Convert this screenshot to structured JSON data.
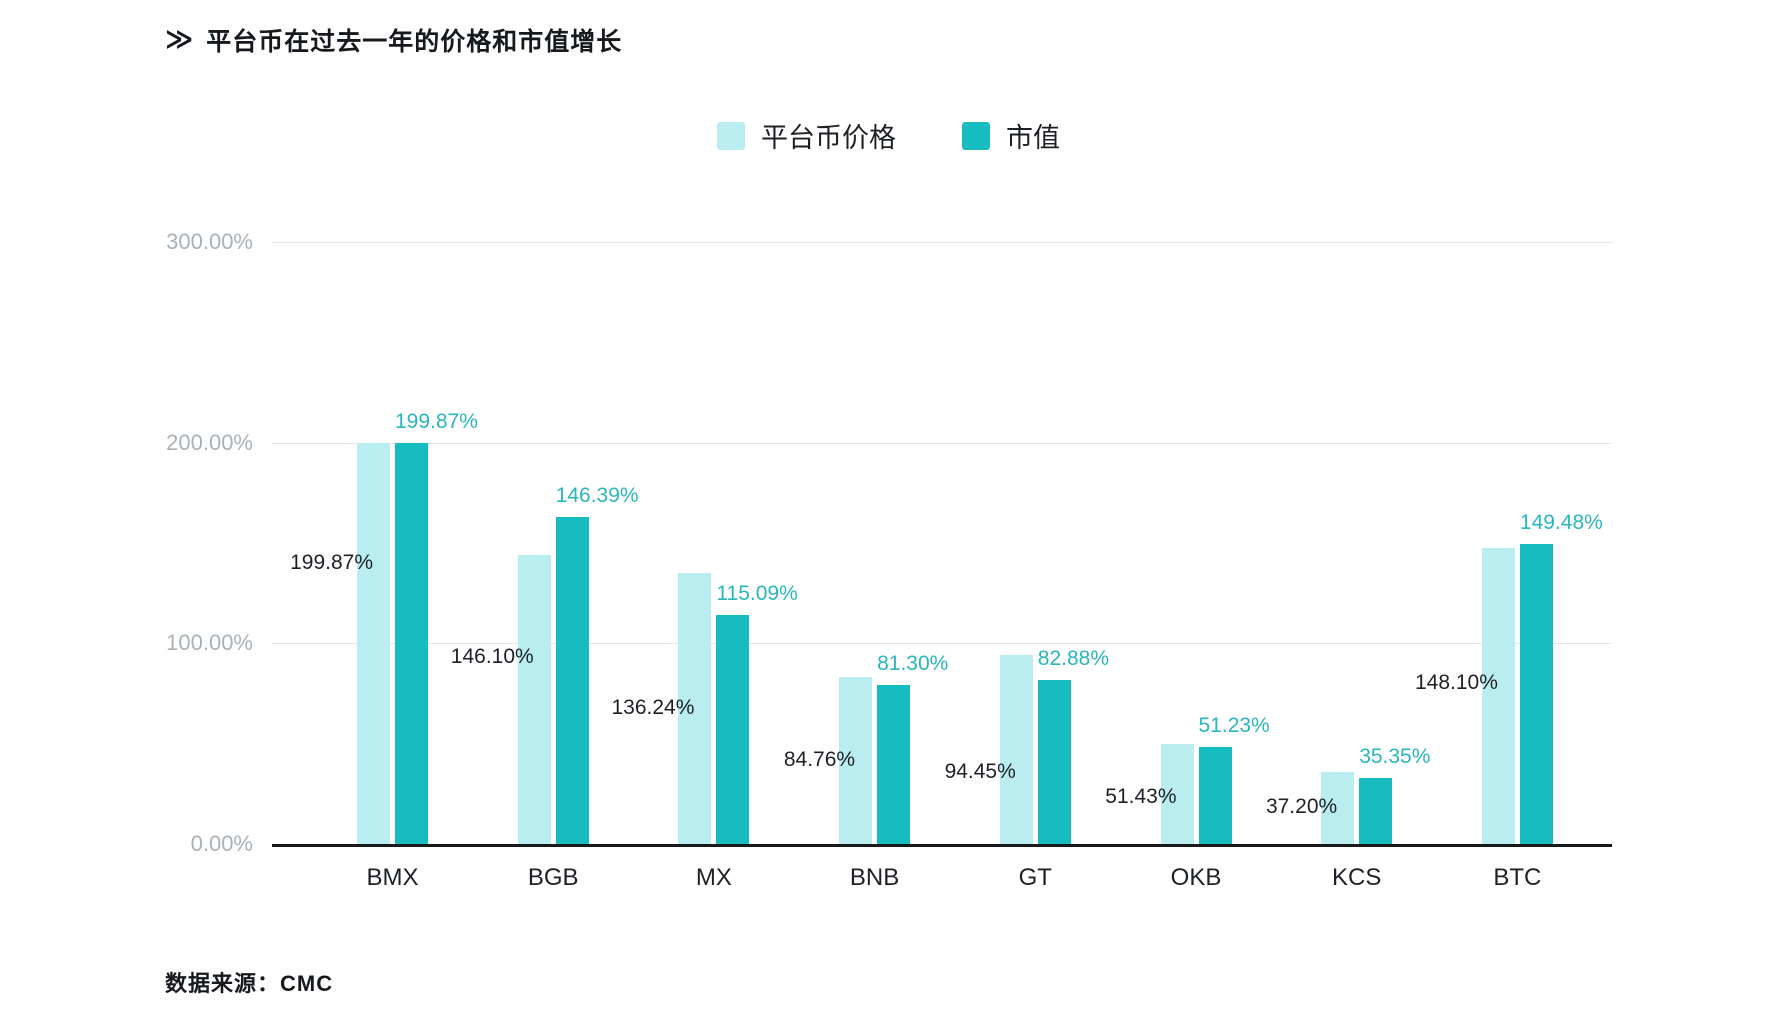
{
  "header": {
    "title_marker": "≫",
    "title": "平台币在过去一年的价格和市值增长"
  },
  "legend": {
    "items": [
      {
        "label": "平台币价格",
        "color": "#b9edef"
      },
      {
        "label": "市值",
        "color": "#17bcc0"
      }
    ]
  },
  "footer": {
    "source": "数据来源：CMC"
  },
  "colors": {
    "light_bar": "#b9edef",
    "dark_bar": "#17bcc0",
    "teal_label": "#2ab6bd",
    "dark_text": "#1d2126",
    "axis_tick_text": "#a9b2b8",
    "gridline": "#e4e6e6",
    "baseline": "#17191b"
  },
  "chart_data": {
    "type": "bar",
    "title": "平台币在过去一年的价格和市值增长",
    "source_note": "数据来源：CMC",
    "categories": [
      "BMX",
      "BGB",
      "MX",
      "BNB",
      "GT",
      "OKB",
      "KCS",
      "BTC"
    ],
    "series": [
      {
        "name": "平台币价格",
        "color": "#b9edef",
        "label_color": "#1d2126",
        "values": [
          199.87,
          146.1,
          136.24,
          84.76,
          94.45,
          51.43,
          37.2,
          148.1
        ]
      },
      {
        "name": "市值",
        "color": "#17bcc0",
        "label_color": "#2ab6bd",
        "values": [
          199.87,
          146.39,
          115.09,
          81.3,
          82.88,
          51.23,
          35.35,
          149.48
        ]
      }
    ],
    "value_suffix": "%",
    "ylim": [
      0,
      300
    ],
    "yticks": [
      300,
      200,
      100,
      0
    ],
    "ytick_labels": [
      "300.00%",
      "200.00%",
      "100.00%",
      "0.00%"
    ],
    "grid": "horizontal",
    "legend_position": "top-center",
    "layout": {
      "drawn_heights_pct": [
        [
          199.6,
          144.2,
          135.2,
          83.3,
          94.3,
          49.9,
          35.9,
          147.6
        ],
        [
          199.6,
          163.1,
          114.2,
          79.3,
          81.8,
          48.4,
          32.9,
          149.6
        ]
      ],
      "price_label_center_pct": [
        140.1,
        93.3,
        67.8,
        41.9,
        35.9,
        23.4,
        18.5,
        80.3
      ]
    }
  }
}
